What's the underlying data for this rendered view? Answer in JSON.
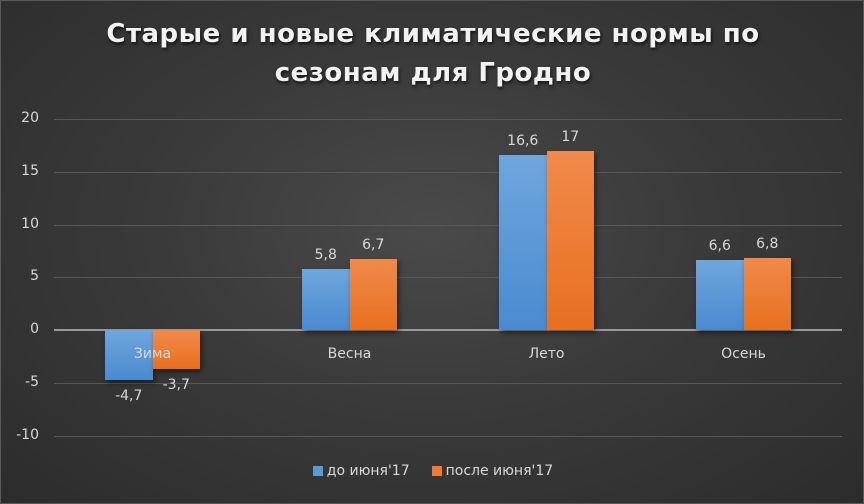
{
  "chart_data": {
    "type": "bar",
    "title": "Старые и новые климатические нормы по сезонам для Гродно",
    "title_lines": [
      "Старые и новые климатические нормы по",
      "сезонам для Гродно"
    ],
    "categories": [
      "Зима",
      "Весна",
      "Лето",
      "Осень"
    ],
    "series": [
      {
        "name": "до июня'17",
        "color": "#5b9bd5",
        "values": [
          -4.7,
          5.8,
          16.6,
          6.6
        ],
        "labels": [
          "-4,7",
          "5,8",
          "16,6",
          "6,6"
        ]
      },
      {
        "name": "после июня'17",
        "color": "#ed7d31",
        "values": [
          -3.7,
          6.7,
          17,
          6.8
        ],
        "labels": [
          "-3,7",
          "6,7",
          "17",
          "6,8"
        ]
      }
    ],
    "xlabel": "",
    "ylabel": "",
    "ylim": [
      -10,
      20
    ],
    "yticks": [
      20,
      15,
      10,
      5,
      0,
      -5,
      -10
    ],
    "grid": true,
    "legend_position": "bottom"
  }
}
